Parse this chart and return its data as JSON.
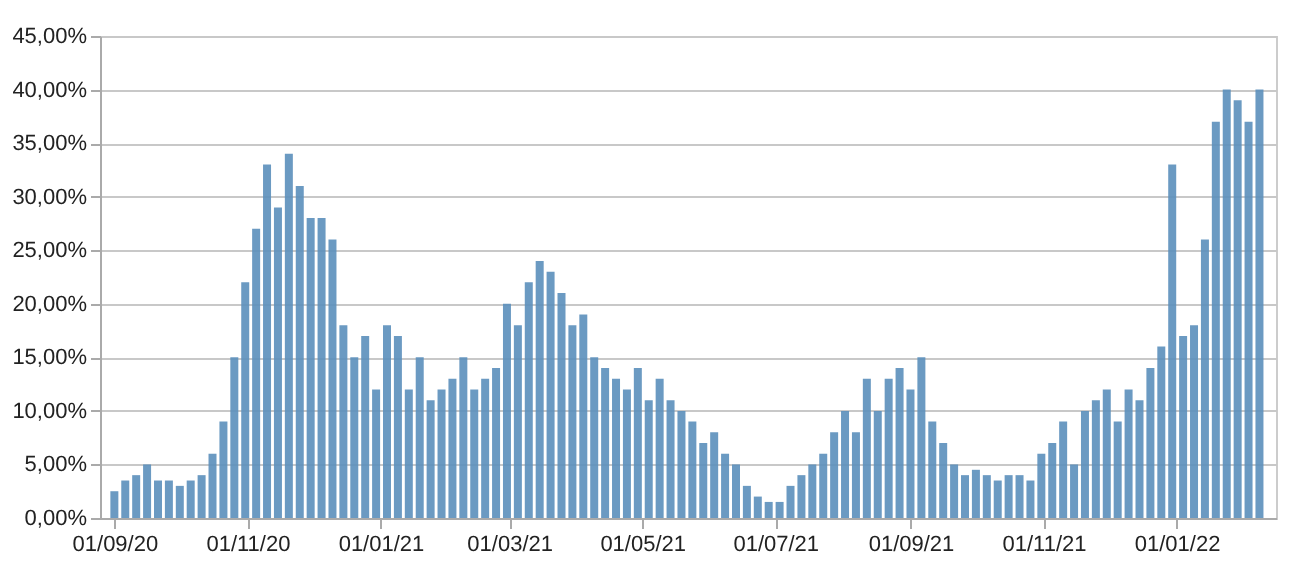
{
  "chart_data": {
    "type": "bar",
    "x": [
      "2020-09-01",
      "2020-09-06",
      "2020-09-11",
      "2020-09-16",
      "2020-09-21",
      "2020-09-26",
      "2020-10-01",
      "2020-10-06",
      "2020-10-11",
      "2020-10-16",
      "2020-10-21",
      "2020-10-26",
      "2020-10-31",
      "2020-11-05",
      "2020-11-10",
      "2020-11-15",
      "2020-11-20",
      "2020-11-25",
      "2020-11-30",
      "2020-12-05",
      "2020-12-10",
      "2020-12-15",
      "2020-12-20",
      "2020-12-25",
      "2020-12-30",
      "2021-01-04",
      "2021-01-09",
      "2021-01-14",
      "2021-01-19",
      "2021-01-24",
      "2021-01-29",
      "2021-02-03",
      "2021-02-08",
      "2021-02-13",
      "2021-02-18",
      "2021-02-23",
      "2021-02-28",
      "2021-03-05",
      "2021-03-10",
      "2021-03-15",
      "2021-03-20",
      "2021-03-25",
      "2021-03-30",
      "2021-04-04",
      "2021-04-09",
      "2021-04-14",
      "2021-04-19",
      "2021-04-24",
      "2021-04-29",
      "2021-05-04",
      "2021-05-09",
      "2021-05-14",
      "2021-05-19",
      "2021-05-24",
      "2021-05-29",
      "2021-06-03",
      "2021-06-08",
      "2021-06-13",
      "2021-06-18",
      "2021-06-23",
      "2021-06-28",
      "2021-07-03",
      "2021-07-08",
      "2021-07-13",
      "2021-07-18",
      "2021-07-23",
      "2021-07-28",
      "2021-08-02",
      "2021-08-07",
      "2021-08-12",
      "2021-08-17",
      "2021-08-22",
      "2021-08-27",
      "2021-09-01",
      "2021-09-06",
      "2021-09-11",
      "2021-09-16",
      "2021-09-21",
      "2021-09-26",
      "2021-10-01",
      "2021-10-06",
      "2021-10-11",
      "2021-10-16",
      "2021-10-21",
      "2021-10-26",
      "2021-10-31",
      "2021-11-05",
      "2021-11-10",
      "2021-11-15",
      "2021-11-20",
      "2021-11-25",
      "2021-11-30",
      "2021-12-05",
      "2021-12-10",
      "2021-12-15",
      "2021-12-20",
      "2021-12-25",
      "2021-12-30",
      "2022-01-04",
      "2022-01-09",
      "2022-01-14",
      "2022-01-19",
      "2022-01-24",
      "2022-01-29",
      "2022-02-03",
      "2022-02-08"
    ],
    "series": [
      {
        "color": "#5b8fbb",
        "values": [
          2.5,
          3.5,
          4,
          5,
          3.5,
          3.5,
          3,
          3.5,
          4,
          6,
          9,
          15,
          22,
          27,
          33,
          29,
          34,
          31,
          28,
          28,
          26,
          18,
          15,
          17,
          12,
          18,
          17,
          12,
          15,
          11,
          12,
          13,
          15,
          12,
          13,
          14,
          20,
          18,
          22,
          24,
          23,
          21,
          18,
          19,
          15,
          14,
          13,
          12,
          14,
          11,
          13,
          11,
          10,
          9,
          7,
          8,
          6,
          5,
          3,
          2,
          1.5,
          1.5,
          3,
          4,
          5,
          6,
          8,
          10,
          8,
          13,
          10,
          13,
          14,
          12,
          15,
          9,
          7,
          5,
          4,
          4.5,
          4,
          3.5,
          4,
          4,
          3.5,
          6,
          7,
          9,
          5,
          10,
          11,
          12,
          9,
          12,
          11,
          14,
          16,
          33,
          17,
          18,
          26,
          37,
          40,
          39,
          37,
          40
        ]
      }
    ],
    "xlim": [
      "2020-08-30",
      "2022-02-11"
    ],
    "xticks": [
      {
        "value": "2020-09-01",
        "label": "01/09/20"
      },
      {
        "value": "2020-11-01",
        "label": "01/11/20"
      },
      {
        "value": "2021-01-01",
        "label": "01/01/21"
      },
      {
        "value": "2021-03-01",
        "label": "01/03/21"
      },
      {
        "value": "2021-05-01",
        "label": "01/05/21"
      },
      {
        "value": "2021-07-01",
        "label": "01/07/21"
      },
      {
        "value": "2021-09-01",
        "label": "01/09/21"
      },
      {
        "value": "2021-11-01",
        "label": "01/11/21"
      },
      {
        "value": "2022-01-01",
        "label": "01/01/22"
      }
    ],
    "ylim": [
      0,
      45
    ],
    "yticks": [
      {
        "value": 0,
        "label": "0,00%"
      },
      {
        "value": 5,
        "label": "5,00%"
      },
      {
        "value": 10,
        "label": "10,00%"
      },
      {
        "value": 15,
        "label": "15,00%"
      },
      {
        "value": 20,
        "label": "20,00%"
      },
      {
        "value": 25,
        "label": "25,00%"
      },
      {
        "value": 30,
        "label": "30,00%"
      },
      {
        "value": 35,
        "label": "35,00%"
      },
      {
        "value": 40,
        "label": "40,00%"
      },
      {
        "value": 45,
        "label": "45,00%"
      }
    ],
    "grid": "y"
  }
}
